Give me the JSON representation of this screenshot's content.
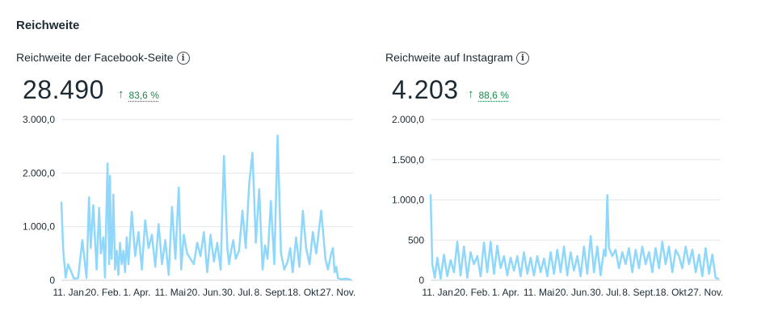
{
  "section": {
    "title": "Reichweite"
  },
  "panels": [
    {
      "title": "Reichweite der Facebook-Seite",
      "info_icon": "info-icon",
      "value": "28.490",
      "delta_icon": "arrow-up-icon",
      "delta": "83,6 %",
      "accent": "#1a8a4a"
    },
    {
      "title": "Reichweite auf Instagram",
      "info_icon": "info-icon",
      "value": "4.203",
      "delta_icon": "arrow-up-icon",
      "delta": "88,6 %",
      "accent": "#1a8a4a"
    }
  ],
  "chart_data": [
    {
      "type": "line",
      "title": "Reichweite der Facebook-Seite",
      "series_color": "#8fd8fb",
      "grid": true,
      "ylim": [
        0,
        3000
      ],
      "y_ticks": [
        0,
        1000,
        2000,
        3000
      ],
      "y_tick_labels": [
        "0",
        "1.000,0",
        "2.000,0",
        "3.000,0"
      ],
      "x_tick_labels": [
        "11. Jan.",
        "20. Feb.",
        "1. Apr.",
        "11. Mai",
        "20. Jun.",
        "30. Jul.",
        "8. Sept.",
        "18. Okt.",
        "27. Nov."
      ],
      "x_tick_days": [
        10,
        50,
        90,
        130,
        170,
        210,
        250,
        290,
        330
      ],
      "x": [
        0,
        2,
        5,
        8,
        15,
        20,
        25,
        30,
        33,
        35,
        38,
        42,
        45,
        47,
        50,
        52,
        55,
        57,
        58,
        59,
        60,
        62,
        64,
        66,
        68,
        70,
        72,
        74,
        76,
        78,
        80,
        84,
        88,
        92,
        96,
        100,
        104,
        108,
        112,
        116,
        120,
        124,
        128,
        132,
        136,
        140,
        143,
        146,
        150,
        154,
        158,
        162,
        166,
        170,
        174,
        178,
        182,
        186,
        190,
        194,
        198,
        200,
        202,
        205,
        208,
        212,
        216,
        220,
        224,
        228,
        232,
        236,
        240,
        243,
        246,
        250,
        254,
        258,
        262,
        266,
        270,
        273,
        276,
        280,
        284,
        288,
        292,
        296,
        300,
        304,
        310,
        315,
        318,
        322,
        324,
        326,
        328,
        330,
        334,
        340,
        345
      ],
      "y": [
        1450,
        600,
        50,
        300,
        30,
        40,
        750,
        40,
        1550,
        600,
        1400,
        200,
        1350,
        500,
        800,
        50,
        2180,
        300,
        1950,
        600,
        400,
        1600,
        200,
        550,
        100,
        700,
        300,
        550,
        150,
        800,
        300,
        1280,
        450,
        900,
        200,
        1120,
        600,
        850,
        250,
        1050,
        300,
        750,
        100,
        1370,
        400,
        1730,
        200,
        850,
        500,
        400,
        300,
        700,
        450,
        900,
        150,
        850,
        350,
        700,
        200,
        2320,
        600,
        300,
        500,
        750,
        400,
        550,
        1300,
        600,
        1800,
        2380,
        700,
        1700,
        200,
        650,
        400,
        1480,
        300,
        2700,
        500,
        200,
        350,
        600,
        150,
        800,
        250,
        1300,
        600,
        300,
        900,
        500,
        1300,
        400,
        200,
        500,
        600,
        150,
        250,
        40,
        20,
        30,
        10
      ]
    },
    {
      "type": "line",
      "title": "Reichweite auf Instagram",
      "series_color": "#8fd8fb",
      "grid": true,
      "ylim": [
        0,
        2000
      ],
      "y_ticks": [
        0,
        500,
        1000,
        1500,
        2000
      ],
      "y_tick_labels": [
        "0",
        "500",
        "1.000,0",
        "1.500,0",
        "2.000,0"
      ],
      "x_tick_labels": [
        "11. Jan.",
        "20. Feb.",
        "1. Apr.",
        "11. Mai",
        "20. Jun.",
        "30. Jul.",
        "8. Sept.",
        "18. Okt.",
        "27. Nov."
      ],
      "x_tick_days": [
        10,
        50,
        90,
        130,
        170,
        210,
        250,
        290,
        330
      ],
      "x": [
        0,
        2,
        5,
        8,
        12,
        16,
        20,
        24,
        28,
        32,
        36,
        40,
        44,
        48,
        52,
        56,
        60,
        64,
        68,
        72,
        76,
        80,
        84,
        88,
        92,
        96,
        100,
        104,
        108,
        112,
        116,
        120,
        124,
        128,
        132,
        136,
        140,
        144,
        148,
        152,
        156,
        160,
        164,
        168,
        172,
        176,
        180,
        184,
        188,
        192,
        196,
        200,
        204,
        208,
        210,
        212,
        214,
        218,
        222,
        226,
        230,
        234,
        238,
        242,
        246,
        250,
        254,
        258,
        262,
        266,
        270,
        274,
        278,
        282,
        286,
        290,
        294,
        298,
        302,
        306,
        310,
        314,
        318,
        322,
        326,
        330,
        334,
        338,
        342,
        345
      ],
      "y": [
        1060,
        200,
        30,
        280,
        20,
        320,
        50,
        250,
        100,
        480,
        60,
        420,
        30,
        350,
        200,
        300,
        50,
        470,
        100,
        480,
        80,
        430,
        150,
        300,
        60,
        280,
        120,
        300,
        50,
        350,
        80,
        280,
        60,
        300,
        100,
        270,
        50,
        350,
        80,
        380,
        100,
        420,
        60,
        350,
        120,
        300,
        50,
        420,
        80,
        550,
        100,
        420,
        60,
        380,
        300,
        1060,
        400,
        300,
        380,
        150,
        350,
        200,
        400,
        100,
        380,
        150,
        420,
        200,
        350,
        100,
        400,
        150,
        480,
        200,
        420,
        100,
        380,
        300,
        150,
        420,
        200,
        380,
        100,
        320,
        50,
        400,
        80,
        320,
        30,
        20
      ]
    }
  ]
}
